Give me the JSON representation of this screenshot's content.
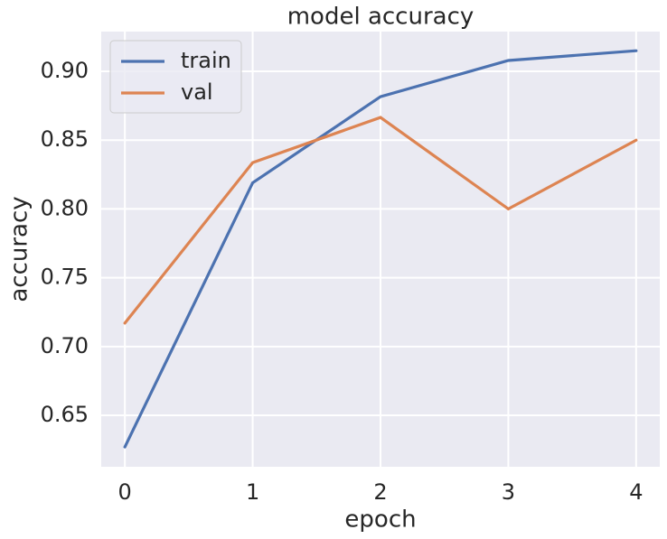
{
  "chart_data": {
    "type": "line",
    "title": "model accuracy",
    "x_label": "epoch",
    "y_label": "accuracy",
    "x": [
      0,
      1,
      2,
      3,
      4
    ],
    "series": [
      {
        "name": "train",
        "color": "#4c72b0",
        "values": [
          0.627,
          0.819,
          0.8816,
          0.9079,
          0.915
        ]
      },
      {
        "name": "val",
        "color": "#dd8452",
        "values": [
          0.717,
          0.8337,
          0.8665,
          0.8,
          0.85
        ]
      }
    ],
    "xlim": [
      -0.185,
      4.185
    ],
    "xticks": [
      0,
      1,
      2,
      3,
      4
    ],
    "ylim": [
      0.6126,
      0.9289
    ],
    "yticks": [
      {
        "value": 0.65,
        "label": "0.65"
      },
      {
        "value": 0.7,
        "label": "0.70"
      },
      {
        "value": 0.75,
        "label": "0.75"
      },
      {
        "value": 0.8,
        "label": "0.80"
      },
      {
        "value": 0.85,
        "label": "0.85"
      },
      {
        "value": 0.9,
        "label": "0.90"
      }
    ],
    "grid": true,
    "legend_position": "upper-left"
  }
}
